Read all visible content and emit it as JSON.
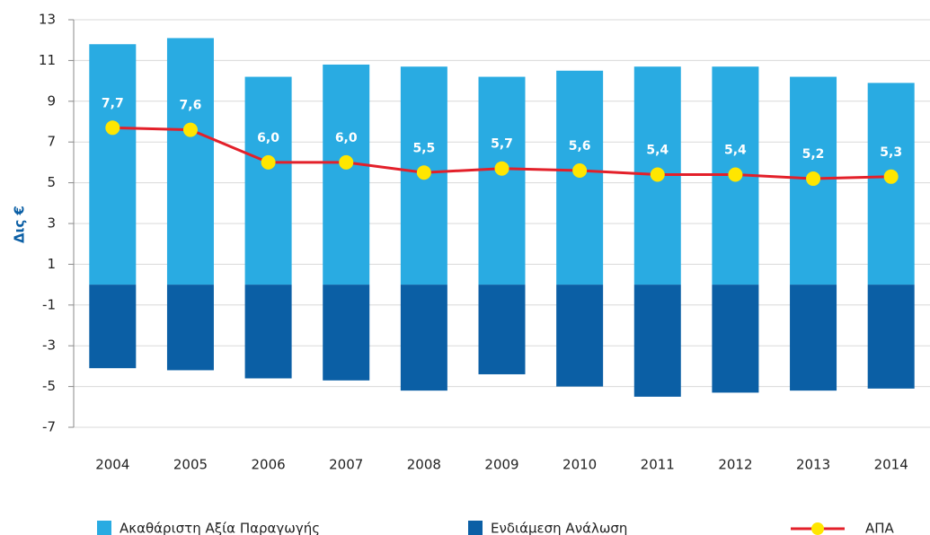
{
  "chart_data": {
    "type": "bar",
    "y_label": "Δις €",
    "categories": [
      "2004",
      "2005",
      "2006",
      "2007",
      "2008",
      "2009",
      "2010",
      "2011",
      "2012",
      "2013",
      "2014"
    ],
    "series": [
      {
        "name": "Ακαθάριστη Αξία Παραγωγής",
        "type": "bar",
        "color": "#29abe2",
        "values": [
          11.8,
          12.1,
          10.2,
          10.8,
          10.7,
          10.2,
          10.5,
          10.7,
          10.7,
          10.2,
          9.9
        ]
      },
      {
        "name": "Ενδιάμεση Ανάλωση",
        "type": "bar",
        "color": "#0b5fa5",
        "values": [
          -4.1,
          -4.2,
          -4.6,
          -4.7,
          -5.2,
          -4.4,
          -5.0,
          -5.5,
          -5.3,
          -5.2,
          -5.1
        ]
      },
      {
        "name": "ΑΠΑ",
        "type": "line",
        "color": "#e3202a",
        "marker_color": "#ffe600",
        "values": [
          7.7,
          7.6,
          6.0,
          6.0,
          5.5,
          5.7,
          5.6,
          5.4,
          5.4,
          5.2,
          5.3
        ],
        "value_labels": [
          "7,7",
          "7,6",
          "6,0",
          "6,0",
          "5,5",
          "5,7",
          "5,6",
          "5,4",
          "5,4",
          "5,2",
          "5,3"
        ]
      }
    ],
    "ylim": [
      -7,
      13
    ],
    "yticks": [
      -7,
      -5,
      -3,
      -1,
      1,
      3,
      5,
      7,
      9,
      11,
      13
    ],
    "grid": true
  }
}
